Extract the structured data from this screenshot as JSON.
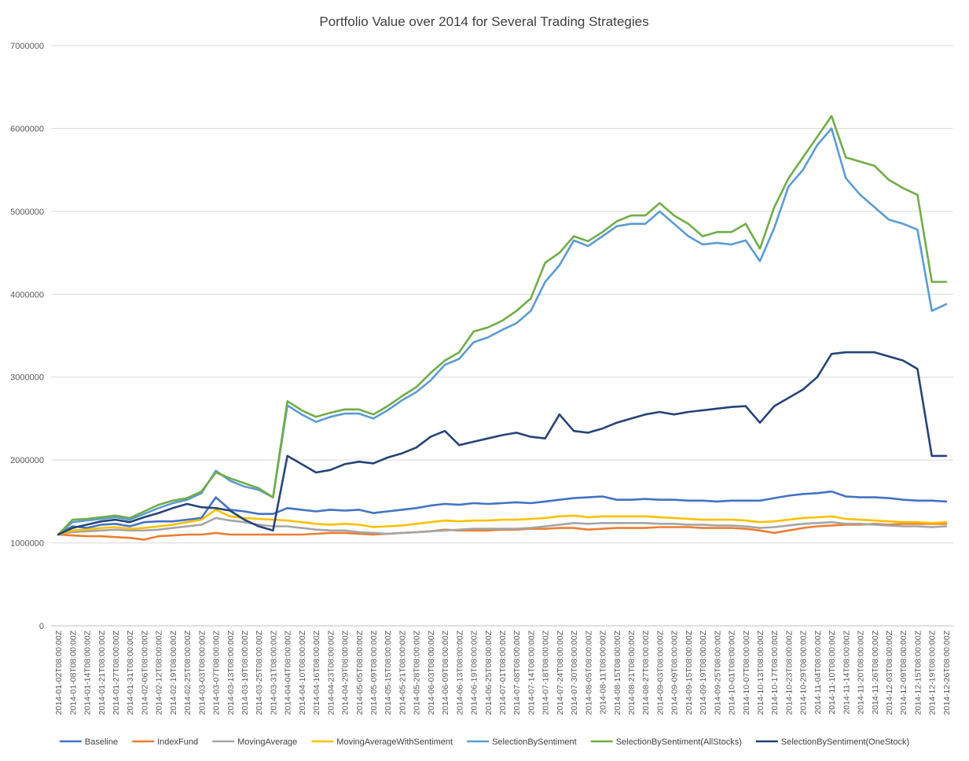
{
  "chart_data": {
    "type": "line",
    "title": "Portfolio Value over 2014 for Several Trading Strategies",
    "xlabel": "",
    "ylabel": "",
    "ylim": [
      0,
      7000000
    ],
    "yticks": [
      "0",
      "1000000",
      "2000000",
      "3000000",
      "4000000",
      "5000000",
      "6000000",
      "7000000"
    ],
    "grid": true,
    "legend_position": "bottom",
    "x_tick_labels": [
      "2014-01-02T08:00:00Z",
      "2014-01-08T08:00:00Z",
      "2014-01-14T08:00:00Z",
      "2014-01-21T08:00:00Z",
      "2014-01-27T08:00:00Z",
      "2014-01-31T08:00:00Z",
      "2014-02-06T08:00:00Z",
      "2014-02-12T08:00:00Z",
      "2014-02-19T08:00:00Z",
      "2014-02-25T08:00:00Z",
      "2014-03-03T08:00:00Z",
      "2014-03-07T08:00:00Z",
      "2014-03-13T08:00:00Z",
      "2014-03-19T08:00:00Z",
      "2014-03-25T08:00:00Z",
      "2014-03-31T08:00:00Z",
      "2014-04-04T08:00:00Z",
      "2014-04-10T08:00:00Z",
      "2014-04-16T08:00:00Z",
      "2014-04-23T08:00:00Z",
      "2014-04-29T08:00:00Z",
      "2014-05-05T08:00:00Z",
      "2014-05-09T08:00:00Z",
      "2014-05-15T08:00:00Z",
      "2014-05-21T08:00:00Z",
      "2014-05-28T08:00:00Z",
      "2014-06-03T08:00:00Z",
      "2014-06-09T08:00:00Z",
      "2014-06-13T08:00:00Z",
      "2014-06-19T08:00:00Z",
      "2014-06-25T08:00:00Z",
      "2014-07-01T08:00:00Z",
      "2014-07-08T08:00:00Z",
      "2014-07-14T08:00:00Z",
      "2014-07-18T08:00:00Z",
      "2014-07-24T08:00:00Z",
      "2014-07-30T08:00:00Z",
      "2014-08-05T08:00:00Z",
      "2014-08-11T08:00:00Z",
      "2014-08-15T08:00:00Z",
      "2014-08-21T08:00:00Z",
      "2014-08-27T08:00:00Z",
      "2014-09-03T08:00:00Z",
      "2014-09-09T08:00:00Z",
      "2014-09-15T08:00:00Z",
      "2014-09-19T08:00:00Z",
      "2014-09-25T08:00:00Z",
      "2014-10-01T08:00:00Z",
      "2014-10-07T08:00:00Z",
      "2014-10-13T08:00:00Z",
      "2014-10-17T08:00:00Z",
      "2014-10-23T08:00:00Z",
      "2014-10-29T08:00:00Z",
      "2014-11-04T08:00:00Z",
      "2014-11-10T08:00:00Z",
      "2014-11-14T08:00:00Z",
      "2014-11-20T08:00:00Z",
      "2014-11-26T08:00:00Z",
      "2014-12-03T08:00:00Z",
      "2014-12-09T08:00:00Z",
      "2014-12-15T08:00:00Z",
      "2014-12-19T08:00:00Z",
      "2014-12-26T08:00:00Z"
    ],
    "series": [
      {
        "name": "Baseline",
        "color": "#4472c4",
        "values": [
          1100000,
          1200000,
          1180000,
          1220000,
          1230000,
          1200000,
          1250000,
          1260000,
          1260000,
          1280000,
          1300000,
          1550000,
          1400000,
          1380000,
          1350000,
          1350000,
          1420000,
          1400000,
          1380000,
          1400000,
          1390000,
          1400000,
          1360000,
          1380000,
          1400000,
          1420000,
          1450000,
          1470000,
          1460000,
          1480000,
          1470000,
          1480000,
          1490000,
          1480000,
          1500000,
          1520000,
          1540000,
          1550000,
          1560000,
          1520000,
          1520000,
          1530000,
          1520000,
          1520000,
          1510000,
          1510000,
          1500000,
          1510000,
          1510000,
          1510000,
          1540000,
          1570000,
          1590000,
          1600000,
          1620000,
          1560000,
          1550000,
          1550000,
          1540000,
          1520000,
          1510000,
          1510000,
          1500000
        ]
      },
      {
        "name": "IndexFund",
        "color": "#ed7d31",
        "values": [
          1100000,
          1090000,
          1080000,
          1080000,
          1070000,
          1060000,
          1040000,
          1080000,
          1090000,
          1100000,
          1100000,
          1120000,
          1100000,
          1100000,
          1100000,
          1100000,
          1100000,
          1100000,
          1110000,
          1120000,
          1120000,
          1110000,
          1100000,
          1110000,
          1120000,
          1130000,
          1140000,
          1160000,
          1150000,
          1150000,
          1150000,
          1160000,
          1160000,
          1170000,
          1170000,
          1180000,
          1180000,
          1160000,
          1170000,
          1180000,
          1180000,
          1180000,
          1190000,
          1190000,
          1190000,
          1180000,
          1180000,
          1180000,
          1170000,
          1150000,
          1120000,
          1150000,
          1180000,
          1200000,
          1210000,
          1220000,
          1220000,
          1230000,
          1220000,
          1230000,
          1230000,
          1230000,
          1230000
        ]
      },
      {
        "name": "MovingAverage",
        "color": "#a5a5a5",
        "values": [
          1100000,
          1130000,
          1140000,
          1150000,
          1160000,
          1150000,
          1150000,
          1160000,
          1180000,
          1200000,
          1220000,
          1300000,
          1270000,
          1250000,
          1220000,
          1200000,
          1200000,
          1180000,
          1160000,
          1150000,
          1150000,
          1130000,
          1120000,
          1110000,
          1120000,
          1130000,
          1140000,
          1150000,
          1160000,
          1170000,
          1170000,
          1170000,
          1170000,
          1180000,
          1200000,
          1220000,
          1240000,
          1230000,
          1240000,
          1240000,
          1240000,
          1240000,
          1230000,
          1230000,
          1220000,
          1220000,
          1210000,
          1210000,
          1200000,
          1180000,
          1190000,
          1210000,
          1230000,
          1240000,
          1250000,
          1230000,
          1230000,
          1220000,
          1210000,
          1200000,
          1200000,
          1190000,
          1200000
        ]
      },
      {
        "name": "MovingAverageWithSentiment",
        "color": "#ffc000",
        "values": [
          1100000,
          1150000,
          1160000,
          1180000,
          1190000,
          1170000,
          1180000,
          1200000,
          1220000,
          1250000,
          1280000,
          1400000,
          1320000,
          1300000,
          1290000,
          1280000,
          1270000,
          1250000,
          1230000,
          1220000,
          1230000,
          1220000,
          1190000,
          1200000,
          1210000,
          1230000,
          1250000,
          1270000,
          1260000,
          1270000,
          1270000,
          1280000,
          1280000,
          1290000,
          1300000,
          1320000,
          1330000,
          1310000,
          1320000,
          1320000,
          1320000,
          1320000,
          1310000,
          1300000,
          1290000,
          1280000,
          1280000,
          1280000,
          1270000,
          1250000,
          1260000,
          1280000,
          1300000,
          1310000,
          1320000,
          1290000,
          1280000,
          1270000,
          1260000,
          1250000,
          1250000,
          1240000,
          1250000
        ]
      },
      {
        "name": "SelectionBySentiment",
        "color": "#5b9bd5",
        "values": [
          1100000,
          1250000,
          1270000,
          1290000,
          1310000,
          1280000,
          1350000,
          1420000,
          1480000,
          1520000,
          1600000,
          1870000,
          1750000,
          1680000,
          1640000,
          1550000,
          2660000,
          2550000,
          2460000,
          2520000,
          2560000,
          2560000,
          2500000,
          2600000,
          2720000,
          2820000,
          2960000,
          3150000,
          3220000,
          3420000,
          3480000,
          3570000,
          3650000,
          3800000,
          4150000,
          4350000,
          4650000,
          4580000,
          4700000,
          4820000,
          4850000,
          4850000,
          5000000,
          4850000,
          4700000,
          4600000,
          4620000,
          4600000,
          4650000,
          4400000,
          4800000,
          5300000,
          5500000,
          5800000,
          6000000,
          5400000,
          5200000,
          5050000,
          4900000,
          4850000,
          4780000,
          3800000,
          3880000
        ]
      },
      {
        "name": "SelectionBySentiment(AllStocks)",
        "color": "#70ad47",
        "values": [
          1100000,
          1280000,
          1290000,
          1310000,
          1330000,
          1300000,
          1380000,
          1460000,
          1510000,
          1540000,
          1620000,
          1850000,
          1780000,
          1720000,
          1660000,
          1550000,
          2710000,
          2600000,
          2520000,
          2570000,
          2610000,
          2610000,
          2550000,
          2650000,
          2770000,
          2880000,
          3050000,
          3200000,
          3300000,
          3550000,
          3600000,
          3680000,
          3800000,
          3950000,
          4380000,
          4500000,
          4700000,
          4640000,
          4750000,
          4880000,
          4950000,
          4950000,
          5100000,
          4950000,
          4850000,
          4700000,
          4750000,
          4750000,
          4850000,
          4550000,
          5050000,
          5400000,
          5650000,
          5900000,
          6150000,
          5650000,
          5600000,
          5550000,
          5380000,
          5280000,
          5200000,
          4150000,
          4150000
        ]
      },
      {
        "name": "SelectionBySentiment(OneStock)",
        "color": "#264478",
        "values": [
          1100000,
          1180000,
          1220000,
          1260000,
          1280000,
          1250000,
          1310000,
          1360000,
          1420000,
          1470000,
          1430000,
          1420000,
          1390000,
          1280000,
          1200000,
          1150000,
          2050000,
          1950000,
          1850000,
          1880000,
          1950000,
          1980000,
          1960000,
          2030000,
          2080000,
          2150000,
          2280000,
          2350000,
          2180000,
          2220000,
          2260000,
          2300000,
          2330000,
          2280000,
          2260000,
          2550000,
          2350000,
          2330000,
          2380000,
          2450000,
          2500000,
          2550000,
          2580000,
          2550000,
          2580000,
          2600000,
          2620000,
          2640000,
          2650000,
          2450000,
          2650000,
          2750000,
          2850000,
          3000000,
          3280000,
          3300000,
          3300000,
          3300000,
          3250000,
          3200000,
          3100000,
          2050000,
          2050000
        ]
      }
    ]
  }
}
